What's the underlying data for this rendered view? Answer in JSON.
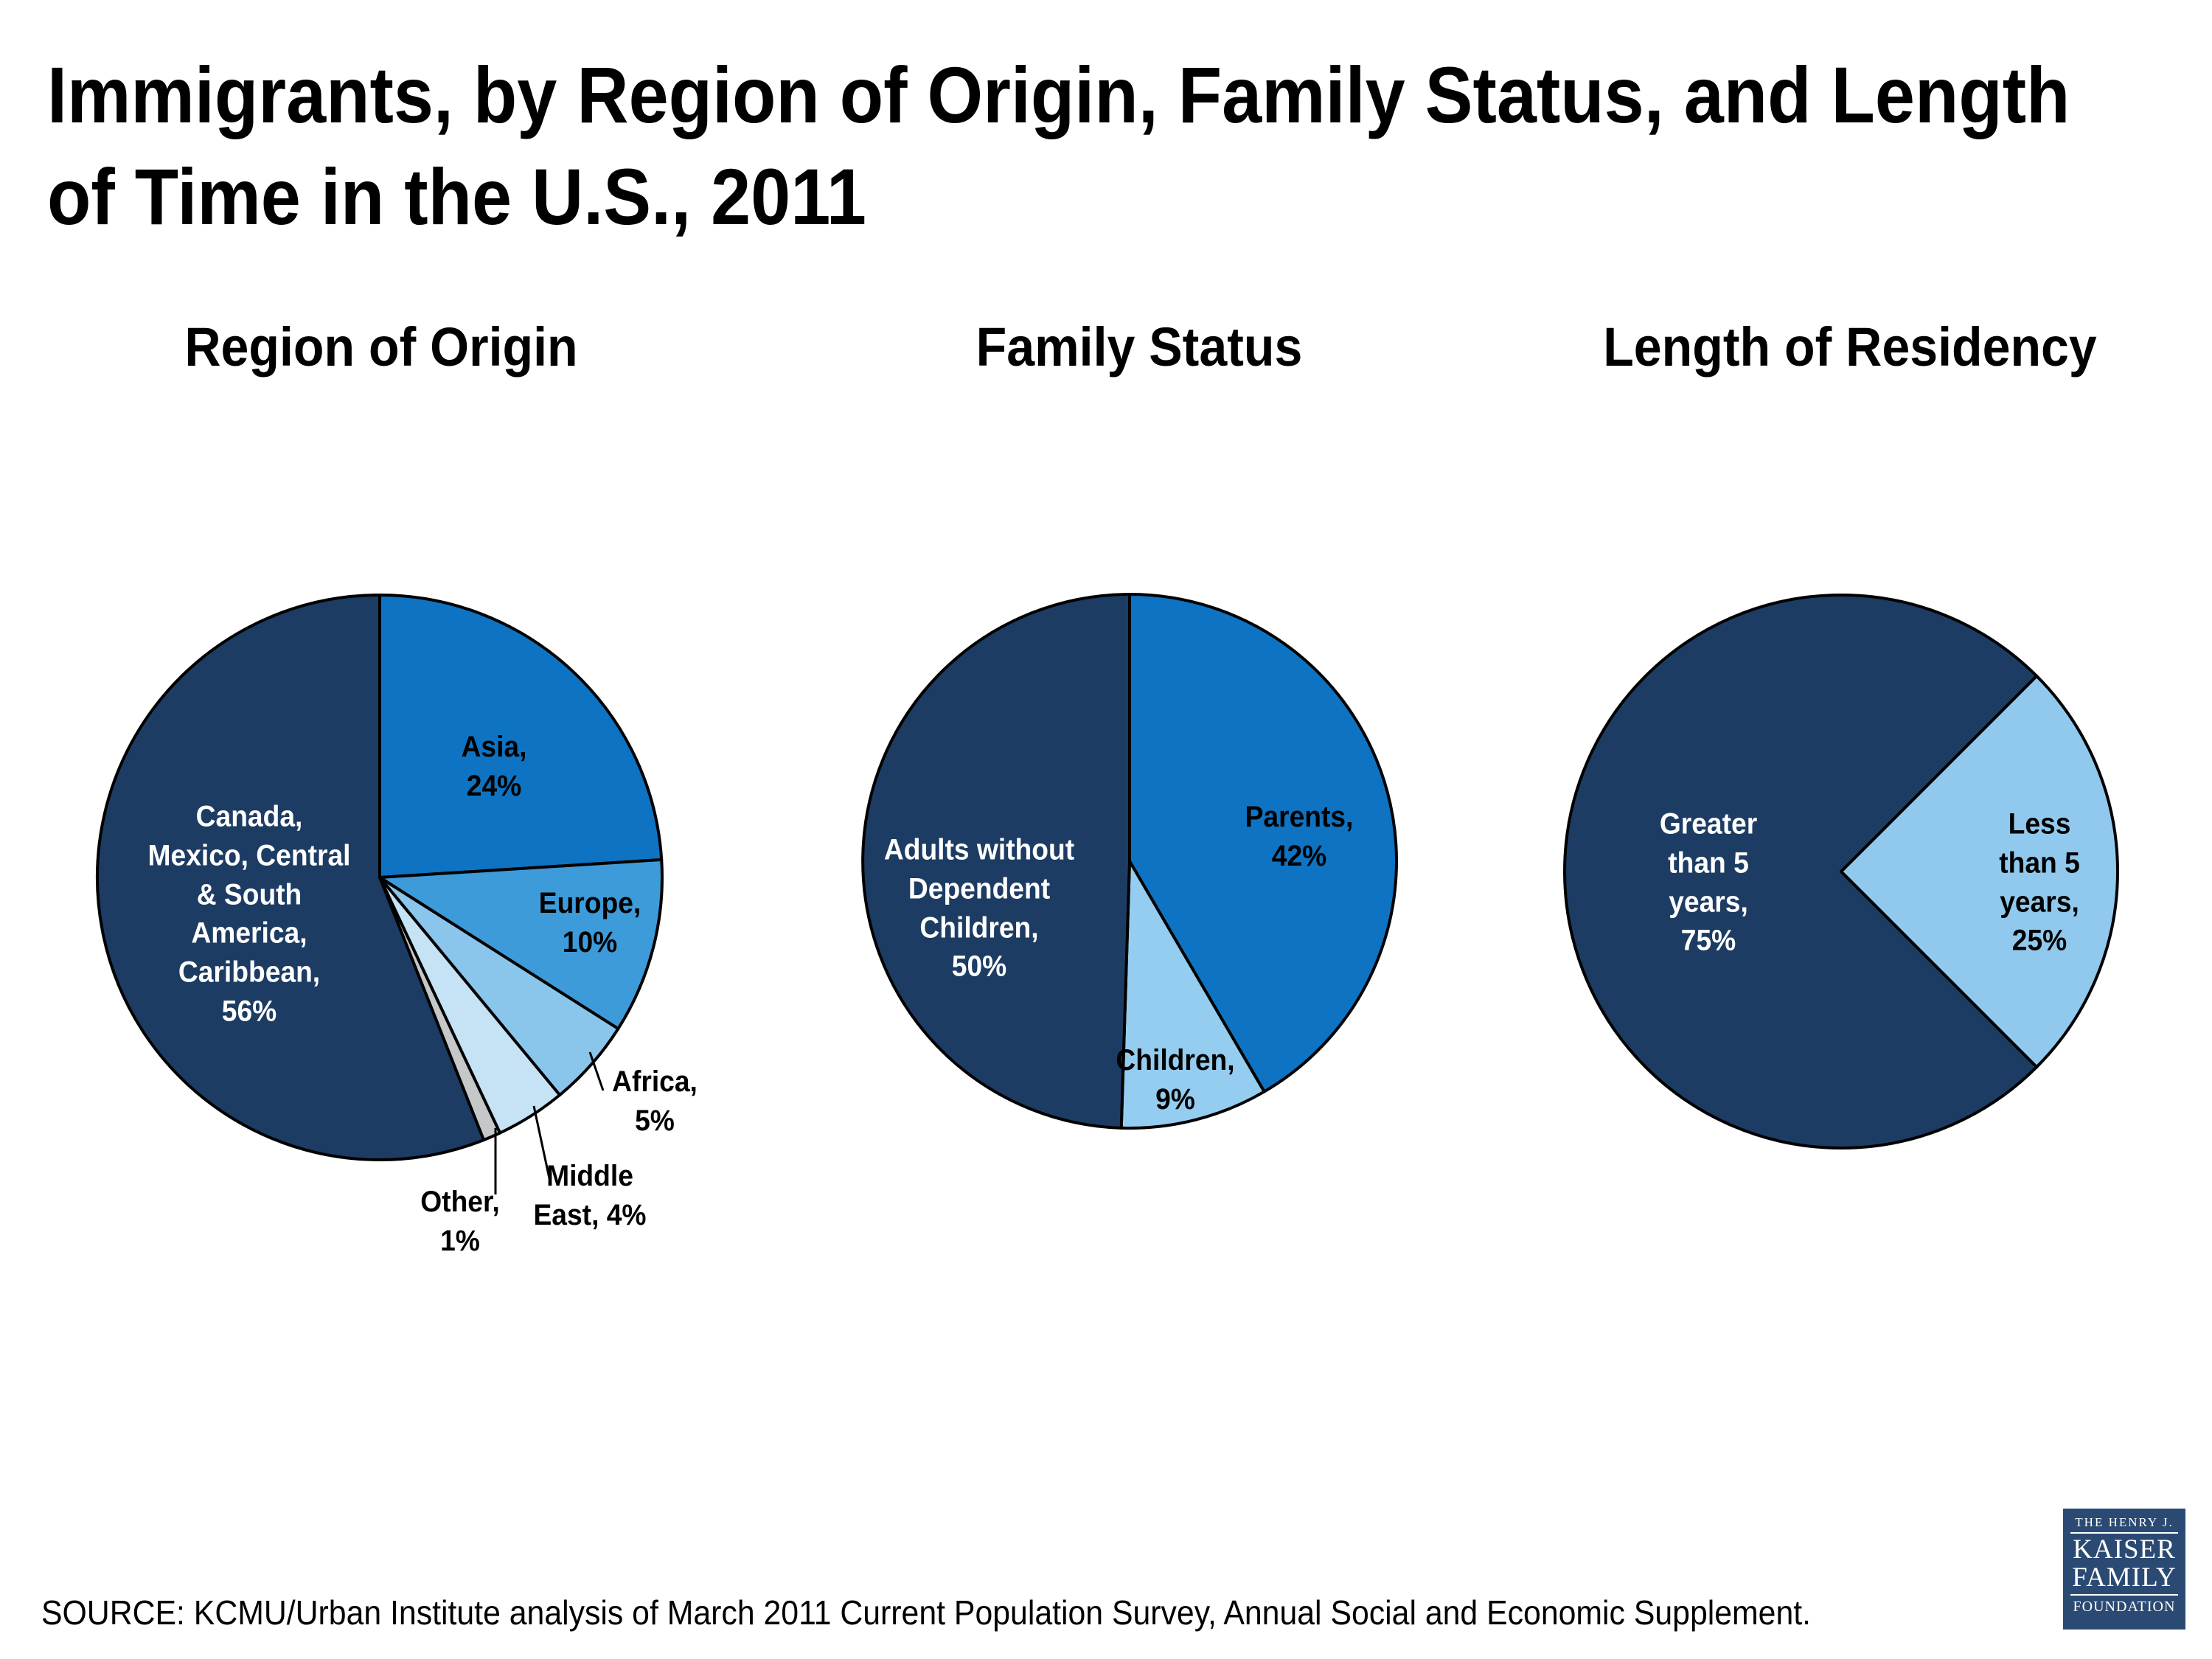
{
  "slide": {
    "title_line1": "Immigrants, by Region of Origin, Family Status, and Length",
    "title_line2": "of Time in the U.S., 2011",
    "source": "SOURCE: KCMU/Urban Institute analysis of March 2011 Current Population Survey, Annual Social and Economic Supplement."
  },
  "logo": {
    "top": "THE HENRY J.",
    "name1": "KAISER",
    "name2": "FAMILY",
    "bottom": "FOUNDATION"
  },
  "colors": {
    "navy": "#1d3c63",
    "strong_blue": "#0e73c2",
    "mid_blue": "#3d9bd9",
    "light_blue": "#8ac6ec",
    "pale_blue": "#c6e2f5",
    "gray": "#c6c7c9",
    "sky_blue": "#94cdef",
    "sky_blue2": "#90c9ed",
    "logo_bg": "#2b4a73"
  },
  "chart_data": [
    {
      "type": "pie",
      "title": "Region of Origin",
      "start_angle_deg": 0,
      "slices": [
        {
          "id": "asia",
          "label": "Asia",
          "value": 24,
          "color": "#0e73c2",
          "label_display": "Asia,\n24%",
          "label_color": "#000000",
          "label_inside": true
        },
        {
          "id": "europe",
          "label": "Europe",
          "value": 10,
          "color": "#3d9bd9",
          "label_display": "Europe,\n10%",
          "label_color": "#000000",
          "label_inside": true
        },
        {
          "id": "africa",
          "label": "Africa",
          "value": 5,
          "color": "#8ac6ec",
          "label_display": "Africa,\n5%",
          "label_color": "#000000",
          "label_inside": false,
          "leader_line": true
        },
        {
          "id": "middle_east",
          "label": "Middle East",
          "value": 4,
          "color": "#c6e2f5",
          "label_display": "Middle\nEast, 4%",
          "label_color": "#000000",
          "label_inside": false,
          "leader_line": true
        },
        {
          "id": "other",
          "label": "Other",
          "value": 1,
          "color": "#c6c7c9",
          "label_display": "Other,\n1%",
          "label_color": "#000000",
          "label_inside": false,
          "leader_line": true
        },
        {
          "id": "canada",
          "label": "Canada, Mexico, Central & South America, Caribbean",
          "value": 56,
          "color": "#1d3c63",
          "label_display": "Canada,\nMexico, Central\n& South\nAmerica,\nCaribbean,\n56%",
          "label_color": "#ffffff",
          "label_inside": true
        }
      ]
    },
    {
      "type": "pie",
      "title": "Family Status",
      "start_angle_deg": 0,
      "slices": [
        {
          "id": "parents",
          "label": "Parents",
          "value": 42,
          "color": "#0e73c2",
          "label_display": "Parents,\n42%",
          "label_color": "#000000",
          "label_inside": true
        },
        {
          "id": "children",
          "label": "Children",
          "value": 9,
          "color": "#94cdef",
          "label_display": "Children,\n9%",
          "label_color": "#000000",
          "label_inside": true
        },
        {
          "id": "adults",
          "label": "Adults without Dependent Children",
          "value": 50,
          "color": "#1d3c63",
          "label_display": "Adults without\nDependent\nChildren,\n50%",
          "label_color": "#ffffff",
          "label_inside": true
        }
      ]
    },
    {
      "type": "pie",
      "title": "Length of Residency",
      "start_angle_deg": 45,
      "slices": [
        {
          "id": "less",
          "label": "Less than 5 years",
          "value": 25,
          "color": "#90c9ed",
          "label_display": "Less\nthan 5\nyears,\n25%",
          "label_color": "#000000",
          "label_inside": true
        },
        {
          "id": "greater",
          "label": "Greater than 5 years",
          "value": 75,
          "color": "#1d3c63",
          "label_display": "Greater\nthan 5\nyears,\n75%",
          "label_color": "#ffffff",
          "label_inside": true
        }
      ]
    }
  ]
}
